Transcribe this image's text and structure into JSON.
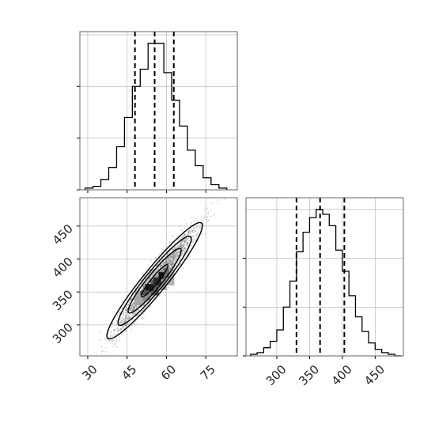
{
  "chart_data": [
    {
      "type": "histogram",
      "panel": "top-left",
      "variable_index": 0,
      "x_range": [
        27,
        87
      ],
      "bin_edges": [
        29,
        32,
        35,
        38,
        41,
        44,
        47,
        50,
        53,
        56,
        59,
        62,
        65,
        68,
        71,
        74,
        77,
        80,
        83
      ],
      "counts": [
        1,
        2,
        6,
        13,
        25,
        42,
        60,
        70,
        85,
        85,
        68,
        52,
        37,
        23,
        14,
        7,
        3,
        1
      ],
      "quantiles": [
        48,
        55.5,
        62.8
      ],
      "grid": true,
      "y_ticks_labeled": false,
      "x_ticks_labeled": false
    },
    {
      "type": "scatter",
      "panel": "bottom-left",
      "subtype": "2d-density-with-contours",
      "x_range": [
        27,
        87
      ],
      "y_range": [
        253,
        493
      ],
      "x_ticks": [
        30,
        45,
        60,
        75
      ],
      "y_ticks": [
        300,
        350,
        400,
        450
      ],
      "contour_center": [
        55.5,
        367
      ],
      "contour_slope": 4.9,
      "contour_levels_sigma": [
        0.5,
        1,
        1.5,
        2
      ],
      "density_blocks": [
        {
          "x0": 48,
          "x1": 51,
          "y0": 330,
          "y1": 352,
          "shade": "#a8a8a8"
        },
        {
          "x0": 51,
          "x1": 54,
          "y0": 337,
          "y1": 360,
          "shade": "#8a8a8a"
        },
        {
          "x0": 54,
          "x1": 57,
          "y0": 345,
          "y1": 368,
          "shade": "#5a5a5a"
        },
        {
          "x0": 57,
          "x1": 60,
          "y0": 353,
          "y1": 375,
          "shade": "#9a9a9a"
        },
        {
          "x0": 60,
          "x1": 63,
          "y0": 360,
          "y1": 385,
          "shade": "#b0b0b0"
        },
        {
          "x0": 52,
          "x1": 55,
          "y0": 352,
          "y1": 362,
          "shade": "#1a1a1a"
        },
        {
          "x0": 55,
          "x1": 58,
          "y0": 360,
          "y1": 372,
          "shade": "#2a2a2a"
        },
        {
          "x0": 57,
          "x1": 59,
          "y0": 370,
          "y1": 380,
          "shade": "#111111"
        },
        {
          "x0": 59,
          "x1": 61,
          "y0": 372,
          "y1": 386,
          "shade": "#6a6a6a"
        },
        {
          "x0": 50,
          "x1": 53,
          "y0": 345,
          "y1": 352,
          "shade": "#555555"
        },
        {
          "x0": 54,
          "x1": 57,
          "y0": 375,
          "y1": 385,
          "shade": "#b8b8b8"
        }
      ],
      "grid": true
    },
    {
      "type": "histogram",
      "panel": "bottom-right",
      "variable_index": 1,
      "x_range": [
        253,
        493
      ],
      "x_ticks": [
        300,
        350,
        400,
        450
      ],
      "bin_edges": [
        260,
        270,
        280,
        290,
        300,
        310,
        320,
        330,
        340,
        350,
        360,
        370,
        380,
        390,
        400,
        410,
        420,
        430,
        440,
        450,
        460,
        470,
        480,
        490
      ],
      "counts": [
        1,
        2,
        5,
        9,
        16,
        30,
        46,
        64,
        76,
        85,
        90,
        87,
        80,
        65,
        52,
        37,
        24,
        15,
        8,
        4,
        2,
        1,
        0
      ],
      "quantiles": [
        330,
        366,
        403
      ],
      "grid": true,
      "y_ticks_labeled": false
    }
  ]
}
